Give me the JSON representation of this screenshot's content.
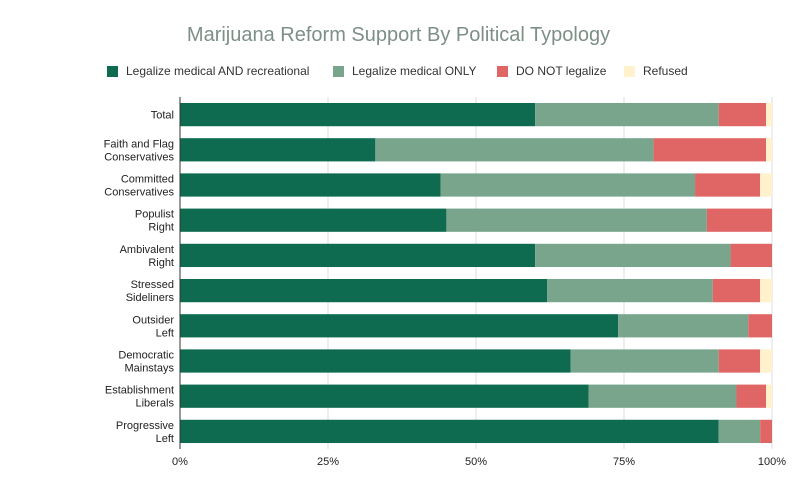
{
  "chart_data": {
    "type": "bar",
    "orientation": "horizontal",
    "stacked": true,
    "title": "Marijuana Reform Support By Political Typology",
    "xlabel": "",
    "ylabel": "",
    "xlim": [
      0,
      100
    ],
    "x_ticks": [
      "0%",
      "25%",
      "50%",
      "75%",
      "100%"
    ],
    "legend_position": "top",
    "categories": [
      [
        "Total"
      ],
      [
        "Faith and Flag",
        "Conservatives"
      ],
      [
        "Committed",
        "Conservatives"
      ],
      [
        "Populist",
        "Right"
      ],
      [
        "Ambivalent",
        "Right"
      ],
      [
        "Stressed",
        "Sideliners"
      ],
      [
        "Outsider",
        "Left"
      ],
      [
        "Democratic",
        "Mainstays"
      ],
      [
        "Establishment",
        "Liberals"
      ],
      [
        "Progressive",
        "Left"
      ]
    ],
    "series": [
      {
        "name": "Legalize medical AND recreational",
        "color": "#0f6b4f",
        "values": [
          60,
          33,
          44,
          45,
          60,
          62,
          74,
          66,
          69,
          91
        ]
      },
      {
        "name": "Legalize medical ONLY",
        "color": "#78a58c",
        "values": [
          31,
          47,
          43,
          44,
          33,
          28,
          22,
          25,
          25,
          7
        ]
      },
      {
        "name": "DO NOT legalize",
        "color": "#e06666",
        "values": [
          8,
          19,
          11,
          11,
          7,
          8,
          4,
          7,
          5,
          2
        ]
      },
      {
        "name": "Refused",
        "color": "#fff2cc",
        "values": [
          1,
          1,
          2,
          0,
          0,
          2,
          0,
          2,
          1,
          0
        ]
      }
    ]
  }
}
